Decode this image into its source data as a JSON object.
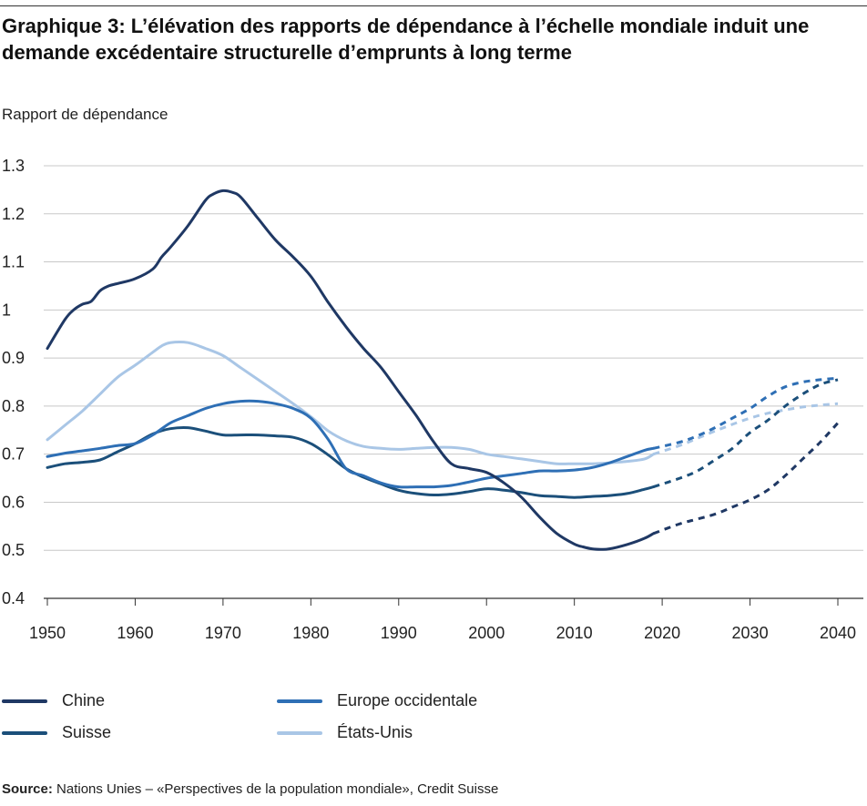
{
  "title": "Graphique 3: L’élévation des rapports de dépendance à l’échelle mondiale induit une demande excédentaire structurelle d’emprunts à long terme",
  "source_label": "Source:",
  "source_text": " Nations Unies – «Perspectives de la population mondiale», Credit Suisse",
  "colors": {
    "chine": "#1f3864",
    "europe": "#2e6fb5",
    "suisse": "#1b4f7a",
    "etats_unis": "#a9c6e6",
    "grid": "#c8c8c8",
    "axis": "#333333"
  },
  "chart_data": {
    "type": "line",
    "title": "",
    "xlabel": "",
    "ylabel": "Rapport de dépendance",
    "xlim": [
      1950,
      2040
    ],
    "ylim": [
      0.4,
      1.3
    ],
    "x_ticks": [
      "1950",
      "1960",
      "1970",
      "1980",
      "1990",
      "2000",
      "2010",
      "2020",
      "2030",
      "2040"
    ],
    "y_ticks": [
      "0.4",
      "0.5",
      "0.6",
      "0.7",
      "0.8",
      "0.9",
      "1",
      "1.1",
      "1.2",
      "1.3"
    ],
    "grid": "horizontal",
    "legend": "bottom",
    "projection_start": 2019,
    "projection_style": "dashed",
    "series": [
      {
        "name": "Chine",
        "key": "chine",
        "x": [
          1950,
          1952,
          1953,
          1954,
          1955,
          1956,
          1957,
          1958,
          1960,
          1962,
          1963,
          1964,
          1966,
          1968,
          1969,
          1970,
          1971,
          1972,
          1974,
          1976,
          1978,
          1980,
          1982,
          1984,
          1986,
          1988,
          1990,
          1992,
          1994,
          1996,
          1998,
          2000,
          2002,
          2004,
          2006,
          2008,
          2010,
          2011,
          2012,
          2013,
          2014,
          2016,
          2018,
          2019,
          2022,
          2024,
          2026,
          2028,
          2030,
          2032,
          2034,
          2036,
          2038,
          2040
        ],
        "y": [
          0.92,
          0.98,
          1.0,
          1.012,
          1.018,
          1.04,
          1.05,
          1.055,
          1.065,
          1.085,
          1.11,
          1.13,
          1.175,
          1.228,
          1.242,
          1.248,
          1.245,
          1.235,
          1.19,
          1.145,
          1.11,
          1.07,
          1.015,
          0.965,
          0.92,
          0.88,
          0.83,
          0.78,
          0.725,
          0.68,
          0.67,
          0.662,
          0.64,
          0.61,
          0.57,
          0.535,
          0.513,
          0.507,
          0.503,
          0.502,
          0.503,
          0.512,
          0.525,
          0.535,
          0.555,
          0.565,
          0.575,
          0.59,
          0.605,
          0.625,
          0.655,
          0.69,
          0.725,
          0.765
        ]
      },
      {
        "name": "Europe occidentale",
        "key": "europe",
        "x": [
          1950,
          1952,
          1954,
          1956,
          1958,
          1960,
          1962,
          1964,
          1966,
          1968,
          1970,
          1972,
          1974,
          1976,
          1978,
          1980,
          1982,
          1984,
          1986,
          1988,
          1990,
          1992,
          1994,
          1996,
          1998,
          2000,
          2002,
          2004,
          2006,
          2008,
          2010,
          2012,
          2014,
          2016,
          2018,
          2019,
          2022,
          2024,
          2026,
          2028,
          2030,
          2032,
          2034,
          2036,
          2038,
          2040
        ],
        "y": [
          0.695,
          0.702,
          0.707,
          0.712,
          0.718,
          0.722,
          0.74,
          0.765,
          0.78,
          0.795,
          0.805,
          0.81,
          0.81,
          0.805,
          0.795,
          0.775,
          0.73,
          0.67,
          0.655,
          0.64,
          0.632,
          0.632,
          0.632,
          0.635,
          0.642,
          0.65,
          0.655,
          0.66,
          0.665,
          0.665,
          0.667,
          0.672,
          0.682,
          0.695,
          0.708,
          0.712,
          0.725,
          0.738,
          0.755,
          0.775,
          0.795,
          0.82,
          0.84,
          0.85,
          0.855,
          0.858
        ]
      },
      {
        "name": "Suisse",
        "key": "suisse",
        "x": [
          1950,
          1952,
          1954,
          1956,
          1958,
          1960,
          1962,
          1964,
          1966,
          1968,
          1970,
          1972,
          1974,
          1976,
          1978,
          1980,
          1982,
          1984,
          1986,
          1988,
          1990,
          1992,
          1994,
          1996,
          1998,
          2000,
          2002,
          2004,
          2006,
          2008,
          2010,
          2012,
          2014,
          2016,
          2018,
          2019,
          2022,
          2024,
          2026,
          2028,
          2030,
          2032,
          2034,
          2036,
          2038,
          2040
        ],
        "y": [
          0.672,
          0.68,
          0.683,
          0.688,
          0.705,
          0.722,
          0.742,
          0.753,
          0.755,
          0.748,
          0.74,
          0.74,
          0.74,
          0.738,
          0.735,
          0.722,
          0.698,
          0.67,
          0.652,
          0.638,
          0.625,
          0.618,
          0.615,
          0.617,
          0.622,
          0.628,
          0.625,
          0.62,
          0.614,
          0.612,
          0.61,
          0.612,
          0.614,
          0.618,
          0.627,
          0.632,
          0.65,
          0.665,
          0.688,
          0.712,
          0.745,
          0.77,
          0.8,
          0.825,
          0.845,
          0.855
        ]
      },
      {
        "name": "États-Unis",
        "key": "etats_unis",
        "x": [
          1950,
          1952,
          1954,
          1956,
          1958,
          1960,
          1962,
          1963,
          1964,
          1966,
          1968,
          1970,
          1972,
          1974,
          1976,
          1978,
          1980,
          1982,
          1984,
          1986,
          1988,
          1990,
          1992,
          1994,
          1996,
          1998,
          2000,
          2002,
          2004,
          2006,
          2008,
          2010,
          2012,
          2014,
          2016,
          2018,
          2019,
          2022,
          2024,
          2026,
          2028,
          2030,
          2032,
          2034,
          2036,
          2038,
          2040
        ],
        "y": [
          0.73,
          0.76,
          0.79,
          0.825,
          0.86,
          0.885,
          0.912,
          0.925,
          0.932,
          0.932,
          0.92,
          0.905,
          0.88,
          0.855,
          0.83,
          0.805,
          0.778,
          0.748,
          0.728,
          0.716,
          0.712,
          0.71,
          0.712,
          0.714,
          0.714,
          0.71,
          0.7,
          0.695,
          0.69,
          0.685,
          0.68,
          0.68,
          0.68,
          0.682,
          0.685,
          0.69,
          0.7,
          0.718,
          0.733,
          0.748,
          0.762,
          0.775,
          0.785,
          0.792,
          0.798,
          0.802,
          0.805
        ]
      }
    ]
  },
  "legend_items": [
    {
      "name": "Chine",
      "key": "chine"
    },
    {
      "name": "Europe occidentale",
      "key": "europe"
    },
    {
      "name": "Suisse",
      "key": "suisse"
    },
    {
      "name": "États-Unis",
      "key": "etats_unis"
    }
  ]
}
